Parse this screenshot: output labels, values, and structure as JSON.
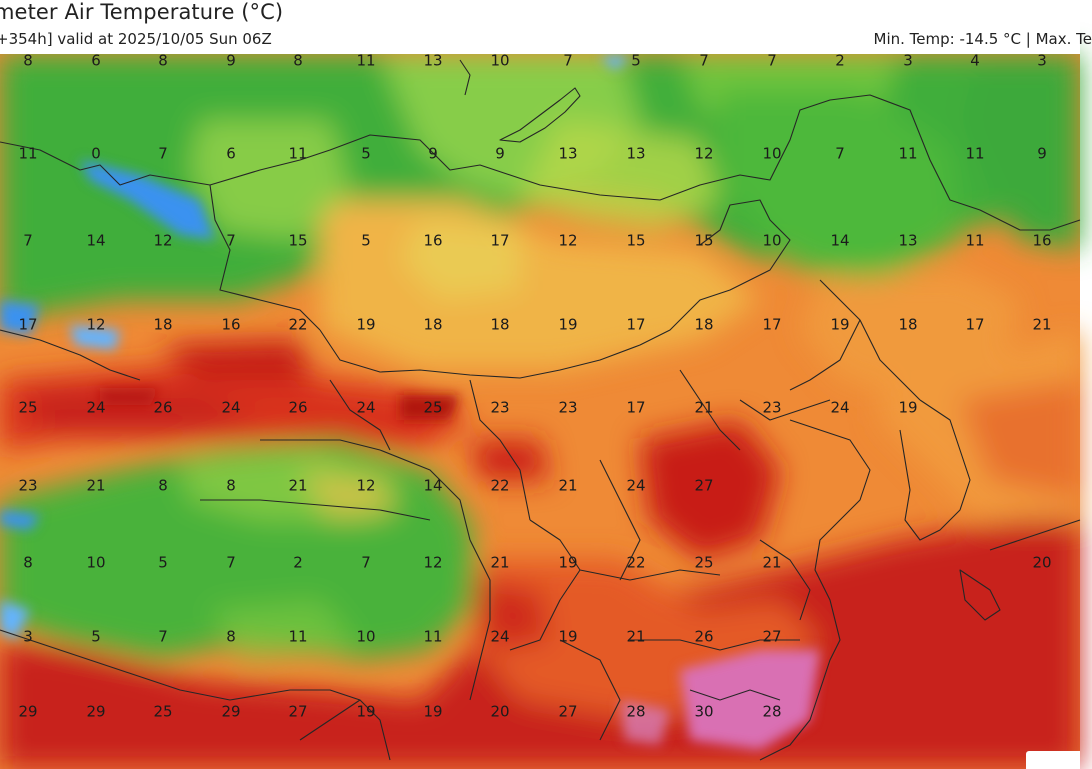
{
  "header": {
    "title": "meter Air Temperature (°C)",
    "subtitle": "+354h] valid at 2025/10/05 Sun 06Z",
    "minmax": "Min. Temp: -14.5 °C | Max. Te"
  },
  "colors": {
    "very_cold": "#4aa0ff",
    "cold": "#2fb43c",
    "cool": "#7cc93a",
    "mild": "#e6d24a",
    "warm": "#f3a13c",
    "hot": "#e86a2a",
    "very_hot": "#cc1f14",
    "extreme": "#d973b8",
    "border_line": "#2b2b2b"
  },
  "temperatures": {
    "rows": [
      [
        "8",
        "6",
        "8",
        "9",
        "8",
        "11",
        "13",
        "10",
        "7",
        "5",
        "7",
        "7",
        "2",
        "3",
        "4",
        "3"
      ],
      [
        "11",
        "0",
        "7",
        "6",
        "11",
        "5",
        "9",
        "9",
        "13",
        "13",
        "12",
        "10",
        "7",
        "11",
        "11",
        "9"
      ],
      [
        "7",
        "14",
        "12",
        "7",
        "15",
        "5",
        "16",
        "17",
        "12",
        "15",
        "15",
        "10",
        "14",
        "13",
        "11",
        "16"
      ],
      [
        "17",
        "12",
        "18",
        "16",
        "22",
        "19",
        "18",
        "18",
        "19",
        "17",
        "18",
        "17",
        "19",
        "18",
        "17",
        "21"
      ],
      [
        "25",
        "24",
        "26",
        "24",
        "26",
        "24",
        "25",
        "23",
        "23",
        "17",
        "21",
        "23",
        "24",
        "19"
      ],
      [
        "23",
        "21",
        "8",
        "8",
        "21",
        "12",
        "14",
        "22",
        "21",
        "24",
        "27"
      ],
      [
        "8",
        "10",
        "5",
        "7",
        "2",
        "7",
        "12",
        "21",
        "19",
        "22",
        "25",
        "21",
        "20"
      ],
      [
        "3",
        "5",
        "7",
        "8",
        "11",
        "10",
        "11",
        "24",
        "19",
        "21",
        "26",
        "27"
      ],
      [
        "29",
        "29",
        "25",
        "29",
        "27",
        "19",
        "19",
        "20",
        "27",
        "28",
        "30",
        "28"
      ]
    ]
  }
}
